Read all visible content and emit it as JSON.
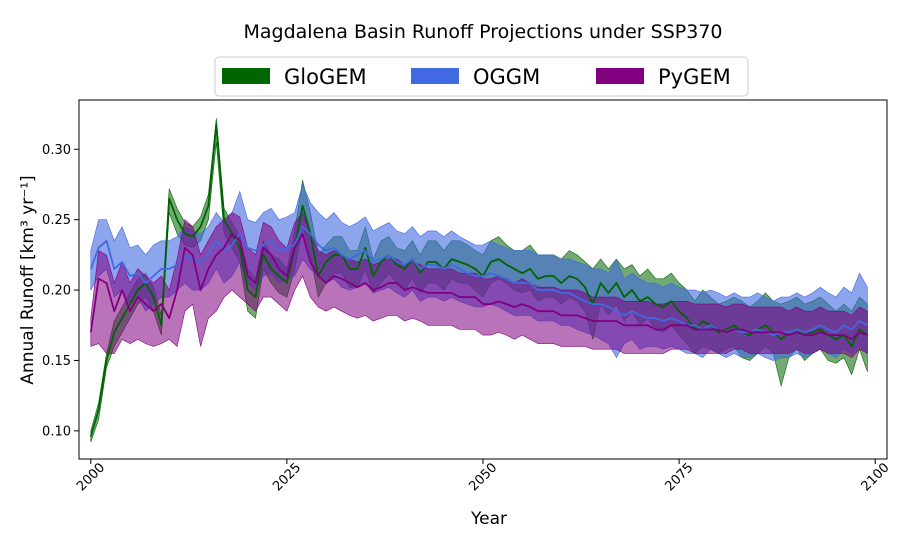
{
  "chart_data": {
    "type": "line",
    "title": "Magdalena Basin Runoff Projections under SSP370",
    "xlabel": "Year",
    "ylabel": "Annual Runoff [km³ yr⁻¹]",
    "xlim": [
      1998.5,
      2101.5
    ],
    "ylim": [
      0.08,
      0.335
    ],
    "x_ticks": [
      2000,
      2025,
      2050,
      2075,
      2100
    ],
    "y_ticks": [
      0.1,
      0.15,
      0.2,
      0.25,
      0.3
    ],
    "y_tick_labels": [
      "0.10",
      "0.15",
      "0.20",
      "0.25",
      "0.30"
    ],
    "grid": false,
    "legend_position": "top-center",
    "x": [
      2000,
      2001,
      2002,
      2003,
      2004,
      2005,
      2006,
      2007,
      2008,
      2009,
      2010,
      2011,
      2012,
      2013,
      2014,
      2015,
      2016,
      2017,
      2018,
      2019,
      2020,
      2021,
      2022,
      2023,
      2024,
      2025,
      2026,
      2027,
      2028,
      2029,
      2030,
      2031,
      2032,
      2033,
      2034,
      2035,
      2036,
      2037,
      2038,
      2039,
      2040,
      2041,
      2042,
      2043,
      2044,
      2045,
      2046,
      2047,
      2048,
      2049,
      2050,
      2051,
      2052,
      2053,
      2054,
      2055,
      2056,
      2057,
      2058,
      2059,
      2060,
      2061,
      2062,
      2063,
      2064,
      2065,
      2066,
      2067,
      2068,
      2069,
      2070,
      2071,
      2072,
      2073,
      2074,
      2075,
      2076,
      2077,
      2078,
      2079,
      2080,
      2081,
      2082,
      2083,
      2084,
      2085,
      2086,
      2087,
      2088,
      2089,
      2090,
      2091,
      2092,
      2093,
      2094,
      2095,
      2096,
      2097,
      2098,
      2099
    ],
    "series": [
      {
        "name": "GloGEM",
        "color": "#006400",
        "mean": [
          0.096,
          0.115,
          0.15,
          0.17,
          0.18,
          0.19,
          0.2,
          0.205,
          0.195,
          0.175,
          0.265,
          0.25,
          0.24,
          0.238,
          0.245,
          0.26,
          0.318,
          0.25,
          0.24,
          0.23,
          0.2,
          0.195,
          0.225,
          0.215,
          0.21,
          0.205,
          0.23,
          0.26,
          0.24,
          0.21,
          0.22,
          0.225,
          0.225,
          0.215,
          0.215,
          0.23,
          0.21,
          0.22,
          0.225,
          0.218,
          0.215,
          0.222,
          0.212,
          0.22,
          0.22,
          0.215,
          0.222,
          0.22,
          0.218,
          0.215,
          0.21,
          0.22,
          0.222,
          0.218,
          0.215,
          0.212,
          0.215,
          0.208,
          0.21,
          0.21,
          0.205,
          0.21,
          0.208,
          0.202,
          0.19,
          0.205,
          0.198,
          0.205,
          0.195,
          0.2,
          0.192,
          0.195,
          0.19,
          0.188,
          0.192,
          0.185,
          0.18,
          0.172,
          0.178,
          0.175,
          0.17,
          0.172,
          0.175,
          0.17,
          0.168,
          0.172,
          0.175,
          0.17,
          0.165,
          0.17,
          0.172,
          0.168,
          0.17,
          0.172,
          0.168,
          0.165,
          0.168,
          0.16,
          0.172,
          0.168
        ],
        "lower": [
          0.092,
          0.108,
          0.145,
          0.16,
          0.17,
          0.18,
          0.19,
          0.195,
          0.185,
          0.168,
          0.255,
          0.24,
          0.232,
          0.23,
          0.235,
          0.25,
          0.305,
          0.24,
          0.23,
          0.22,
          0.185,
          0.18,
          0.215,
          0.205,
          0.198,
          0.195,
          0.215,
          0.245,
          0.225,
          0.195,
          0.205,
          0.212,
          0.212,
          0.202,
          0.202,
          0.215,
          0.198,
          0.205,
          0.212,
          0.205,
          0.2,
          0.208,
          0.198,
          0.205,
          0.205,
          0.2,
          0.208,
          0.205,
          0.205,
          0.2,
          0.195,
          0.205,
          0.208,
          0.205,
          0.2,
          0.198,
          0.2,
          0.192,
          0.195,
          0.195,
          0.19,
          0.195,
          0.192,
          0.185,
          0.165,
          0.19,
          0.182,
          0.19,
          0.178,
          0.185,
          0.175,
          0.18,
          0.172,
          0.17,
          0.175,
          0.168,
          0.162,
          0.155,
          0.16,
          0.158,
          0.155,
          0.158,
          0.16,
          0.152,
          0.15,
          0.155,
          0.16,
          0.155,
          0.132,
          0.152,
          0.158,
          0.15,
          0.155,
          0.158,
          0.15,
          0.148,
          0.152,
          0.14,
          0.158,
          0.142
        ],
        "upper": [
          0.1,
          0.12,
          0.155,
          0.178,
          0.188,
          0.198,
          0.208,
          0.212,
          0.202,
          0.182,
          0.272,
          0.258,
          0.248,
          0.245,
          0.252,
          0.268,
          0.322,
          0.258,
          0.248,
          0.238,
          0.215,
          0.208,
          0.235,
          0.225,
          0.222,
          0.215,
          0.242,
          0.278,
          0.255,
          0.225,
          0.232,
          0.238,
          0.238,
          0.228,
          0.228,
          0.245,
          0.222,
          0.235,
          0.238,
          0.23,
          0.228,
          0.235,
          0.225,
          0.235,
          0.235,
          0.228,
          0.235,
          0.235,
          0.232,
          0.228,
          0.225,
          0.235,
          0.238,
          0.232,
          0.228,
          0.228,
          0.232,
          0.225,
          0.225,
          0.225,
          0.222,
          0.228,
          0.225,
          0.22,
          0.215,
          0.222,
          0.215,
          0.222,
          0.215,
          0.218,
          0.21,
          0.215,
          0.208,
          0.208,
          0.212,
          0.205,
          0.2,
          0.192,
          0.2,
          0.195,
          0.19,
          0.192,
          0.195,
          0.192,
          0.188,
          0.192,
          0.198,
          0.192,
          0.19,
          0.192,
          0.195,
          0.19,
          0.192,
          0.195,
          0.19,
          0.185,
          0.19,
          0.185,
          0.195,
          0.19
        ]
      },
      {
        "name": "OGGM",
        "color": "#4169e1",
        "mean": [
          0.215,
          0.23,
          0.235,
          0.215,
          0.22,
          0.21,
          0.212,
          0.205,
          0.21,
          0.215,
          0.215,
          0.218,
          0.225,
          0.222,
          0.22,
          0.225,
          0.235,
          0.228,
          0.232,
          0.24,
          0.23,
          0.228,
          0.232,
          0.235,
          0.228,
          0.23,
          0.232,
          0.245,
          0.24,
          0.232,
          0.228,
          0.23,
          0.225,
          0.222,
          0.225,
          0.228,
          0.22,
          0.222,
          0.225,
          0.22,
          0.218,
          0.222,
          0.215,
          0.218,
          0.218,
          0.215,
          0.218,
          0.215,
          0.212,
          0.21,
          0.21,
          0.212,
          0.21,
          0.208,
          0.205,
          0.205,
          0.205,
          0.2,
          0.2,
          0.2,
          0.198,
          0.198,
          0.195,
          0.192,
          0.19,
          0.19,
          0.188,
          0.185,
          0.182,
          0.185,
          0.182,
          0.18,
          0.18,
          0.178,
          0.18,
          0.178,
          0.175,
          0.175,
          0.172,
          0.175,
          0.172,
          0.17,
          0.172,
          0.17,
          0.17,
          0.172,
          0.17,
          0.168,
          0.17,
          0.17,
          0.172,
          0.17,
          0.172,
          0.175,
          0.172,
          0.17,
          0.175,
          0.172,
          0.178,
          0.175
        ],
        "lower": [
          0.2,
          0.21,
          0.215,
          0.195,
          0.2,
          0.19,
          0.195,
          0.185,
          0.19,
          0.195,
          0.195,
          0.2,
          0.205,
          0.2,
          0.2,
          0.205,
          0.215,
          0.205,
          0.21,
          0.22,
          0.205,
          0.2,
          0.21,
          0.212,
          0.205,
          0.208,
          0.21,
          0.222,
          0.215,
          0.21,
          0.205,
          0.208,
          0.202,
          0.2,
          0.202,
          0.205,
          0.198,
          0.2,
          0.202,
          0.198,
          0.195,
          0.2,
          0.192,
          0.195,
          0.195,
          0.192,
          0.195,
          0.192,
          0.19,
          0.188,
          0.188,
          0.19,
          0.188,
          0.185,
          0.182,
          0.182,
          0.182,
          0.178,
          0.178,
          0.178,
          0.175,
          0.175,
          0.172,
          0.17,
          0.168,
          0.165,
          0.162,
          0.152,
          0.162,
          0.165,
          0.158,
          0.16,
          0.16,
          0.158,
          0.16,
          0.158,
          0.155,
          0.155,
          0.152,
          0.158,
          0.155,
          0.152,
          0.155,
          0.152,
          0.152,
          0.155,
          0.152,
          0.15,
          0.152,
          0.152,
          0.155,
          0.152,
          0.155,
          0.158,
          0.155,
          0.152,
          0.158,
          0.155,
          0.16,
          0.155
        ],
        "upper": [
          0.228,
          0.25,
          0.25,
          0.235,
          0.245,
          0.23,
          0.232,
          0.225,
          0.232,
          0.235,
          0.235,
          0.238,
          0.245,
          0.242,
          0.24,
          0.245,
          0.255,
          0.248,
          0.255,
          0.27,
          0.25,
          0.248,
          0.255,
          0.258,
          0.25,
          0.252,
          0.255,
          0.275,
          0.262,
          0.255,
          0.25,
          0.255,
          0.248,
          0.245,
          0.248,
          0.252,
          0.242,
          0.245,
          0.248,
          0.242,
          0.24,
          0.245,
          0.238,
          0.242,
          0.242,
          0.238,
          0.242,
          0.238,
          0.235,
          0.232,
          0.232,
          0.235,
          0.232,
          0.23,
          0.228,
          0.228,
          0.228,
          0.225,
          0.225,
          0.225,
          0.222,
          0.222,
          0.22,
          0.218,
          0.215,
          0.215,
          0.212,
          0.222,
          0.208,
          0.212,
          0.208,
          0.205,
          0.205,
          0.202,
          0.205,
          0.202,
          0.2,
          0.2,
          0.198,
          0.2,
          0.198,
          0.195,
          0.198,
          0.195,
          0.195,
          0.198,
          0.195,
          0.192,
          0.195,
          0.195,
          0.198,
          0.195,
          0.198,
          0.202,
          0.198,
          0.195,
          0.202,
          0.198,
          0.212,
          0.202
        ]
      },
      {
        "name": "PyGEM",
        "color": "#800080",
        "mean": [
          0.17,
          0.208,
          0.205,
          0.185,
          0.2,
          0.185,
          0.195,
          0.19,
          0.185,
          0.19,
          0.18,
          0.2,
          0.23,
          0.225,
          0.2,
          0.215,
          0.225,
          0.23,
          0.24,
          0.235,
          0.21,
          0.205,
          0.23,
          0.225,
          0.215,
          0.21,
          0.23,
          0.24,
          0.22,
          0.21,
          0.205,
          0.21,
          0.208,
          0.205,
          0.202,
          0.205,
          0.2,
          0.202,
          0.205,
          0.205,
          0.2,
          0.202,
          0.2,
          0.198,
          0.198,
          0.198,
          0.198,
          0.195,
          0.195,
          0.195,
          0.19,
          0.19,
          0.192,
          0.19,
          0.188,
          0.19,
          0.188,
          0.185,
          0.185,
          0.185,
          0.182,
          0.182,
          0.182,
          0.18,
          0.178,
          0.178,
          0.178,
          0.178,
          0.175,
          0.175,
          0.175,
          0.175,
          0.172,
          0.172,
          0.175,
          0.175,
          0.175,
          0.172,
          0.172,
          0.172,
          0.172,
          0.17,
          0.172,
          0.172,
          0.17,
          0.17,
          0.17,
          0.17,
          0.17,
          0.168,
          0.17,
          0.168,
          0.168,
          0.17,
          0.168,
          0.168,
          0.168,
          0.165,
          0.17,
          0.168
        ],
        "lower": [
          0.16,
          0.162,
          0.155,
          0.155,
          0.165,
          0.162,
          0.165,
          0.162,
          0.16,
          0.162,
          0.165,
          0.16,
          0.185,
          0.19,
          0.16,
          0.18,
          0.185,
          0.195,
          0.2,
          0.195,
          0.19,
          0.185,
          0.195,
          0.195,
          0.19,
          0.185,
          0.2,
          0.21,
          0.195,
          0.188,
          0.185,
          0.188,
          0.185,
          0.182,
          0.18,
          0.182,
          0.178,
          0.18,
          0.182,
          0.182,
          0.178,
          0.18,
          0.178,
          0.175,
          0.175,
          0.175,
          0.175,
          0.172,
          0.172,
          0.172,
          0.168,
          0.168,
          0.17,
          0.168,
          0.165,
          0.168,
          0.165,
          0.162,
          0.162,
          0.162,
          0.16,
          0.16,
          0.16,
          0.16,
          0.158,
          0.158,
          0.158,
          0.158,
          0.155,
          0.155,
          0.155,
          0.155,
          0.155,
          0.155,
          0.158,
          0.158,
          0.158,
          0.155,
          0.155,
          0.155,
          0.155,
          0.155,
          0.158,
          0.158,
          0.155,
          0.155,
          0.155,
          0.155,
          0.155,
          0.155,
          0.158,
          0.155,
          0.155,
          0.158,
          0.155,
          0.155,
          0.155,
          0.152,
          0.158,
          0.155
        ],
        "upper": [
          0.18,
          0.228,
          0.225,
          0.205,
          0.22,
          0.205,
          0.215,
          0.21,
          0.205,
          0.21,
          0.2,
          0.222,
          0.25,
          0.245,
          0.225,
          0.235,
          0.245,
          0.25,
          0.255,
          0.252,
          0.23,
          0.225,
          0.248,
          0.245,
          0.235,
          0.23,
          0.248,
          0.255,
          0.24,
          0.228,
          0.225,
          0.228,
          0.225,
          0.222,
          0.22,
          0.222,
          0.218,
          0.22,
          0.222,
          0.222,
          0.218,
          0.22,
          0.218,
          0.215,
          0.215,
          0.215,
          0.215,
          0.212,
          0.212,
          0.212,
          0.208,
          0.208,
          0.21,
          0.208,
          0.205,
          0.208,
          0.205,
          0.202,
          0.202,
          0.202,
          0.2,
          0.2,
          0.2,
          0.198,
          0.195,
          0.195,
          0.195,
          0.195,
          0.192,
          0.192,
          0.192,
          0.192,
          0.19,
          0.19,
          0.192,
          0.192,
          0.192,
          0.19,
          0.19,
          0.19,
          0.19,
          0.188,
          0.19,
          0.19,
          0.188,
          0.188,
          0.188,
          0.188,
          0.188,
          0.185,
          0.188,
          0.185,
          0.185,
          0.188,
          0.185,
          0.185,
          0.185,
          0.182,
          0.188,
          0.185
        ]
      }
    ]
  }
}
